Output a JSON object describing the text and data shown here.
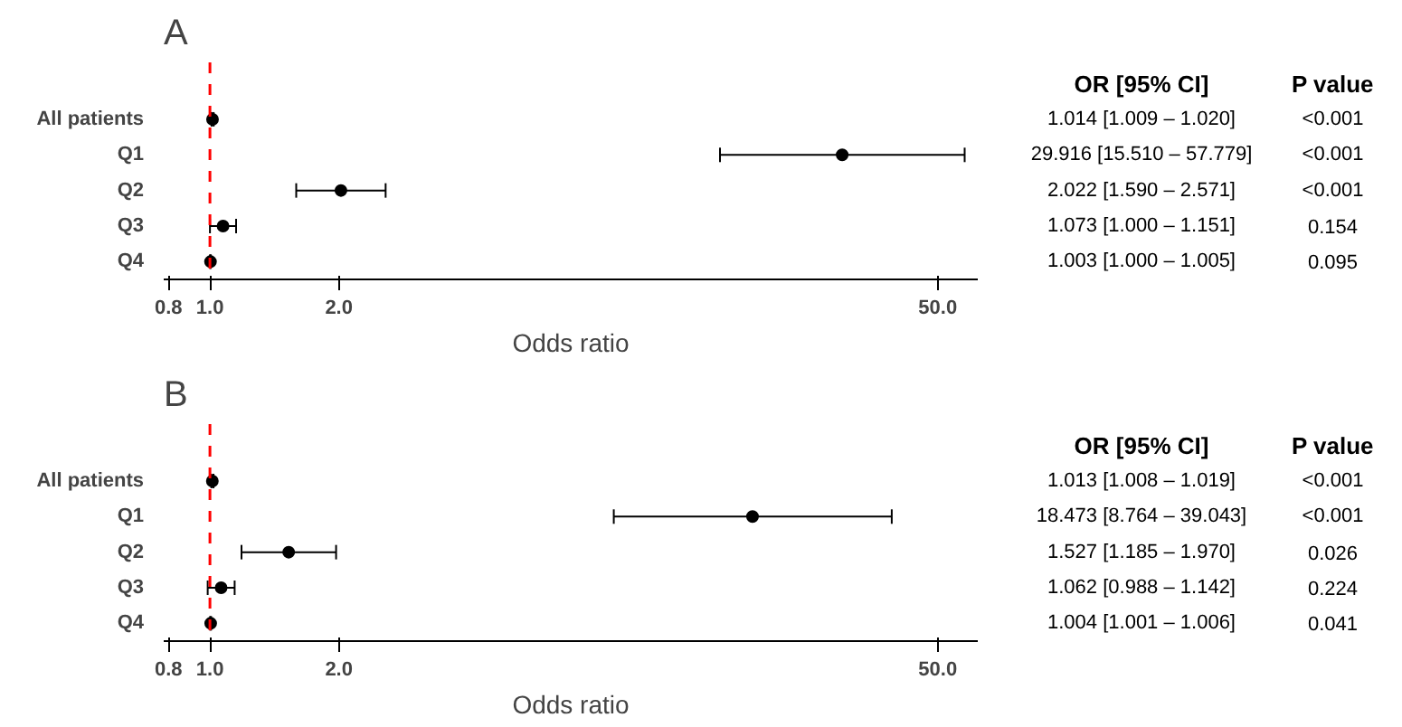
{
  "chart_data": [
    {
      "type": "scatter",
      "title": "A",
      "orientation": "horizontal",
      "log": "x",
      "xlabel": "Odds ratio",
      "marker": "circle",
      "grid": false,
      "categories": [
        "All patients",
        "Q1",
        "Q2",
        "Q3",
        "Q4"
      ],
      "values": [
        1.014,
        29.916,
        2.022,
        1.073,
        1.003
      ],
      "color": "#000000",
      "errors": [
        [
          1.009,
          1.02
        ],
        [
          15.51,
          57.779
        ],
        [
          1.59,
          2.571
        ],
        [
          1.0,
          1.151
        ],
        [
          1.0,
          1.005
        ]
      ],
      "annotations": [
        "OR [95% CI]",
        "P value",
        "1.014 [1.009 – 1.020]",
        "29.916 [15.510 – 57.779]",
        "2.022 [1.590 – 2.571]",
        "1.073 [1.000 – 1.151]",
        "1.003 [1.000 – 1.005]",
        "<0.001",
        "<0.001",
        "<0.001",
        "0.154",
        "0.095"
      ],
      "xlim": [
        0.78,
        62
      ],
      "xticks": [
        0.8,
        {
          "value": 1,
          "label": "1.0"
        },
        {
          "value": 2,
          "label": "2.0"
        },
        {
          "value": 50,
          "label": "50.0"
        }
      ],
      "ref_lines": [
        {
          "axis": "x",
          "value": 1,
          "color": "#ff0000",
          "line_style": "dashed"
        }
      ]
    },
    {
      "type": "scatter",
      "title": "B",
      "orientation": "horizontal",
      "log": "x",
      "xlabel": "Odds ratio",
      "marker": "circle",
      "grid": false,
      "categories": [
        "All patients",
        "Q1",
        "Q2",
        "Q3",
        "Q4"
      ],
      "values": [
        1.013,
        18.473,
        1.527,
        1.062,
        1.004
      ],
      "color": "#000000",
      "errors": [
        [
          1.008,
          1.019
        ],
        [
          8.764,
          39.043
        ],
        [
          1.185,
          1.97
        ],
        [
          0.988,
          1.142
        ],
        [
          1.001,
          1.006
        ]
      ],
      "annotations": [
        "OR [95% CI]",
        "P value",
        "1.013 [1.008 – 1.019]",
        "18.473 [8.764 – 39.043]",
        "1.527 [1.185 – 1.970]",
        "1.062 [0.988 – 1.142]",
        "1.004 [1.001 – 1.006]",
        "<0.001",
        "<0.001",
        "0.026",
        "0.224",
        "0.041"
      ],
      "xlim": [
        0.78,
        62
      ],
      "xticks": [
        0.8,
        {
          "value": 1,
          "label": "1.0"
        },
        {
          "value": 2,
          "label": "2.0"
        },
        {
          "value": 50,
          "label": "50.0"
        }
      ],
      "ref_lines": [
        {
          "axis": "x",
          "value": 1,
          "color": "#ff0000",
          "line_style": "dashed"
        }
      ]
    }
  ]
}
